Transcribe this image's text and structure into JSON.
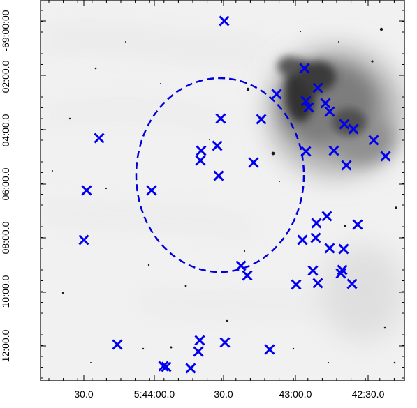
{
  "axes": {
    "x_tick_labels": [
      "30.0",
      "5:44:00.0",
      "30.0",
      "43:00.0",
      "42:30.0"
    ],
    "y_tick_labels": [
      "-69:00:00",
      "02:00.0",
      "04:00.0",
      "06:00.0",
      "08:00.0",
      "10:00.0",
      "12:00.0"
    ]
  },
  "colors": {
    "marker": "#0000ee",
    "ellipse": "#0000dd",
    "frame": "#000000",
    "background": "#ffffff"
  },
  "overlay": {
    "marker_shape": "x-cross",
    "marker_count": 49,
    "region_shape": "dashed-ellipse"
  }
}
